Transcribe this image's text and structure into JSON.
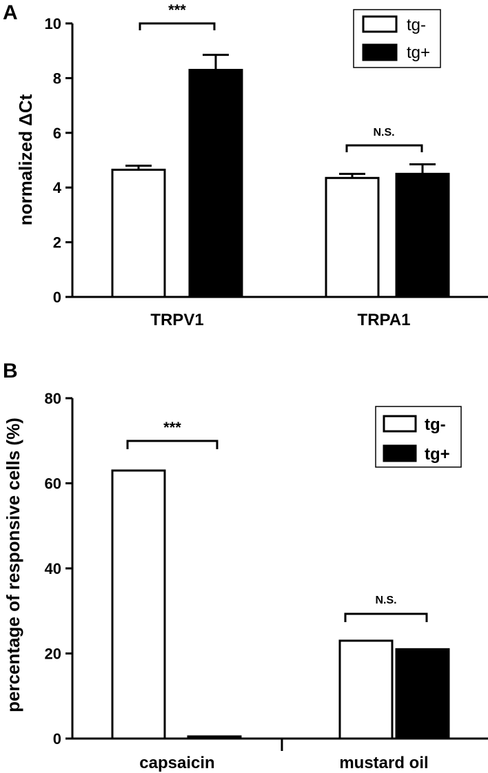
{
  "chart_data": [
    {
      "type": "bar",
      "panel": "A",
      "categories": [
        "TRPV1",
        "TRPA1"
      ],
      "series": [
        {
          "name": "tg-",
          "values": [
            4.65,
            4.35
          ],
          "errors": [
            0.15,
            0.15
          ],
          "color": "#ffffff"
        },
        {
          "name": "tg+",
          "values": [
            8.3,
            4.5
          ],
          "errors": [
            0.55,
            0.35
          ],
          "color": "#000000"
        }
      ],
      "ylabel": "normalized ΔCt",
      "ylim": [
        0,
        10
      ],
      "yticks": [
        "0",
        "2",
        "4",
        "6",
        "8",
        "10"
      ],
      "annotations": [
        "***",
        "N.S."
      ],
      "legend_placement": "top-right",
      "grid": false
    },
    {
      "type": "bar",
      "panel": "B",
      "categories": [
        "capsaicin",
        "mustard oil"
      ],
      "series": [
        {
          "name": "tg-",
          "values": [
            63,
            23
          ],
          "color": "#ffffff"
        },
        {
          "name": "tg+",
          "values": [
            0.5,
            21
          ],
          "color": "#000000"
        }
      ],
      "ylabel": "percentage of responsive cells (%)",
      "ylim": [
        0,
        80
      ],
      "yticks": [
        "0",
        "20",
        "40",
        "60",
        "80"
      ],
      "annotations": [
        "***",
        "N.S."
      ],
      "legend_placement": "top-right",
      "grid": false
    }
  ]
}
